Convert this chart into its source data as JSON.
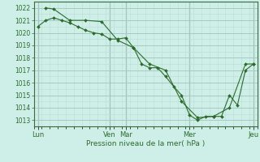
{
  "bg_color": "#ceeee8",
  "grid_color_major": "#a8c8c2",
  "grid_color_minor": "#bcdcd8",
  "line_color": "#2d6b2d",
  "marker_color": "#2d6b2d",
  "xlabel": "Pression niveau de la mer( hPa )",
  "ylim": [
    1012.5,
    1022.5
  ],
  "yticks": [
    1013,
    1014,
    1015,
    1016,
    1017,
    1018,
    1019,
    1020,
    1021,
    1022
  ],
  "xlim": [
    0,
    28
  ],
  "day_labels": [
    "Lun",
    "Ven",
    "Mar",
    "Mer",
    "Jeu"
  ],
  "day_positions": [
    0.5,
    9.5,
    11.5,
    19.5,
    27.5
  ],
  "vline_positions": [
    0.5,
    9.5,
    11.5,
    19.5,
    27.5
  ],
  "series1_x": [
    0.5,
    1.5,
    2.5,
    3.5,
    4.5,
    5.5,
    6.5,
    7.5,
    8.5,
    9.5,
    10.5,
    11.5,
    12.5,
    13.5,
    14.5,
    15.5,
    16.5,
    17.5,
    18.5,
    19.5,
    20.5,
    21.5,
    22.5,
    23.5,
    24.5,
    25.5,
    26.5,
    27.5
  ],
  "series1_y": [
    1020.5,
    1021.0,
    1021.2,
    1021.0,
    1020.8,
    1020.5,
    1020.2,
    1020.0,
    1019.9,
    1019.5,
    1019.5,
    1019.6,
    1018.8,
    1017.5,
    1017.2,
    1017.2,
    1016.5,
    1015.7,
    1015.0,
    1013.4,
    1013.0,
    1013.3,
    1013.3,
    1013.3,
    1015.0,
    1014.2,
    1017.0,
    1017.5
  ],
  "series2_x": [
    1.5,
    2.5,
    4.5,
    6.5,
    8.5,
    10.5,
    12.5,
    14.5,
    16.5,
    18.5,
    20.5,
    22.5,
    24.5,
    26.5,
    27.5
  ],
  "series2_y": [
    1022.0,
    1021.9,
    1021.0,
    1021.0,
    1020.9,
    1019.4,
    1018.8,
    1017.5,
    1017.0,
    1014.5,
    1013.2,
    1013.3,
    1014.0,
    1017.5,
    1017.5
  ]
}
